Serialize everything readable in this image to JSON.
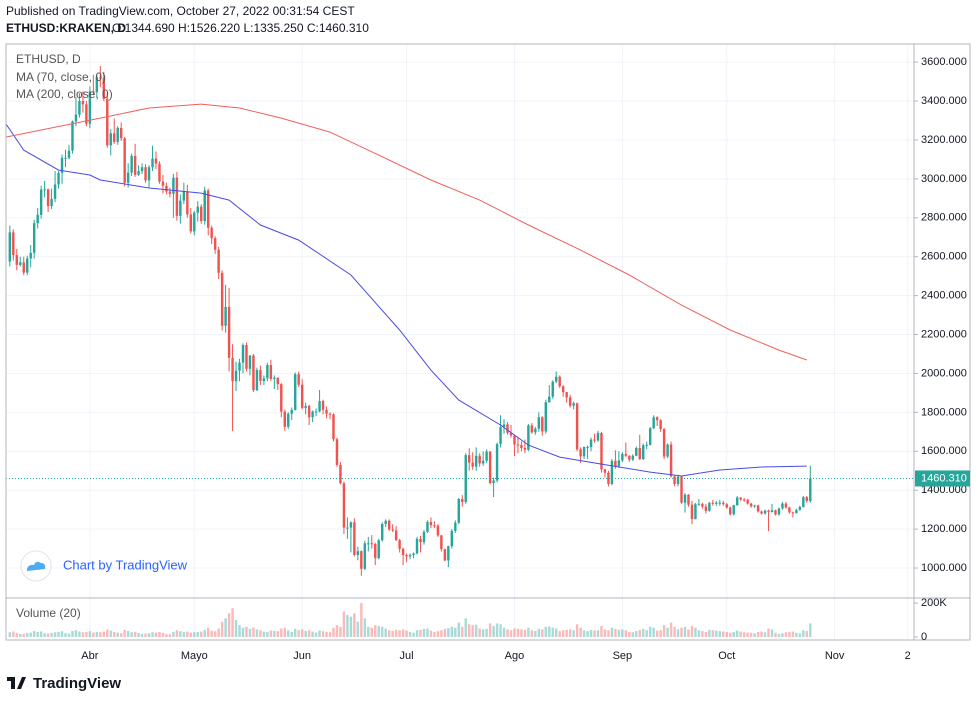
{
  "header": {
    "published": "Published on TradingView.com, October 27, 2022 00:31:54 CEST",
    "symbol": "ETHUSD:KRAKEN, D",
    "ohlc": "O:1344.690 H:1526.220 L:1335.250 C:1460.310"
  },
  "chart_data": {
    "type": "candlestick",
    "legend_title": "ETHUSD, D",
    "up_color": "#26a69a",
    "down_color": "#ef5350",
    "grid": true,
    "open": [
      2575,
      2725,
      2608,
      2558,
      2571,
      2518,
      2591,
      2620,
      2772,
      2815,
      2945,
      2946,
      2860,
      2897,
      2971,
      3031,
      3108,
      3108,
      3145,
      3295,
      3330,
      3400,
      3383,
      3283,
      3450,
      3445,
      3522,
      3520,
      3412,
      3172,
      3234,
      3190,
      3262,
      3209,
      2980,
      3032,
      3118,
      3021,
      3040,
      3060,
      2992,
      3060,
      3104,
      3078,
      2986,
      2964,
      2935,
      2923,
      3006,
      2810,
      2888,
      2935,
      2817,
      2730,
      2826,
      2857,
      2783,
      2940,
      2749,
      2695,
      2636,
      2517,
      2245,
      2342,
      2080,
      1960,
      2014,
      2056,
      2146,
      2024,
      2092,
      1914,
      2018,
      1961,
      1975,
      2043,
      1972,
      1978,
      1945,
      1804,
      1726,
      1793,
      1812,
      1996,
      1942,
      1823,
      1833,
      1775,
      1804,
      1805,
      1858,
      1813,
      1793,
      1790,
      1662,
      1530,
      1436,
      1208,
      1208,
      1235,
      1067,
      1087,
      996,
      1127,
      1127,
      1124,
      1051,
      1143,
      1226,
      1243,
      1199,
      1193,
      1143,
      1099,
      1067,
      1060,
      1067,
      1075,
      1150,
      1133,
      1186,
      1237,
      1220,
      1218,
      1168,
      1097,
      1039,
      1112,
      1191,
      1233,
      1355,
      1339,
      1580,
      1542,
      1521,
      1577,
      1537,
      1551,
      1599,
      1437,
      1450,
      1637,
      1725,
      1738,
      1695,
      1681,
      1635,
      1632,
      1617,
      1608,
      1733,
      1697,
      1716,
      1775,
      1702,
      1852,
      1881,
      1958,
      1983,
      1934,
      1904,
      1877,
      1834,
      1847,
      1610,
      1574,
      1622,
      1622,
      1660,
      1655,
      1694,
      1507,
      1490,
      1432,
      1551,
      1524,
      1553,
      1586,
      1577,
      1557,
      1577,
      1617,
      1560,
      1631,
      1633,
      1718,
      1775,
      1760,
      1714,
      1573,
      1635,
      1471,
      1432,
      1470,
      1336,
      1377,
      1325,
      1252,
      1328,
      1330,
      1316,
      1294,
      1335,
      1330,
      1336,
      1336,
      1328,
      1311,
      1276,
      1323,
      1362,
      1352,
      1351,
      1331,
      1317,
      1322,
      1291,
      1280,
      1295,
      1288,
      1297,
      1275,
      1306,
      1331,
      1311,
      1286,
      1282,
      1299,
      1314,
      1364,
      1344.69
    ],
    "high": [
      2760,
      2740,
      2640,
      2600,
      2600,
      2605,
      2660,
      2790,
      2850,
      2965,
      2990,
      2950,
      2950,
      3040,
      3040,
      3125,
      3150,
      3175,
      3300,
      3420,
      3440,
      3450,
      3400,
      3475,
      3535,
      3535,
      3580,
      3550,
      3445,
      3255,
      3310,
      3270,
      3290,
      3215,
      3080,
      3130,
      3180,
      3070,
      3080,
      3075,
      3070,
      3170,
      3140,
      3090,
      3020,
      2980,
      2955,
      3025,
      3035,
      2920,
      2980,
      2970,
      2850,
      2835,
      2885,
      2870,
      2960,
      2950,
      2760,
      2705,
      2650,
      2530,
      2455,
      2440,
      2150,
      2060,
      2075,
      2155,
      2160,
      2095,
      2100,
      2030,
      2040,
      1990,
      2055,
      2070,
      1990,
      1980,
      1950,
      1815,
      1800,
      1825,
      2005,
      2010,
      1970,
      1850,
      1840,
      1810,
      1820,
      1915,
      1865,
      1830,
      1800,
      1795,
      1670,
      1545,
      1445,
      1260,
      1240,
      1255,
      1110,
      1090,
      1140,
      1160,
      1170,
      1130,
      1150,
      1235,
      1250,
      1250,
      1225,
      1215,
      1150,
      1105,
      1075,
      1075,
      1080,
      1160,
      1165,
      1195,
      1245,
      1260,
      1240,
      1225,
      1170,
      1100,
      1115,
      1200,
      1245,
      1360,
      1375,
      1590,
      1615,
      1595,
      1620,
      1590,
      1600,
      1610,
      1600,
      1465,
      1645,
      1785,
      1765,
      1750,
      1735,
      1685,
      1675,
      1650,
      1660,
      1740,
      1745,
      1725,
      1800,
      1780,
      1865,
      1940,
      1965,
      2010,
      1990,
      1940,
      1905,
      1890,
      1855,
      1850,
      1620,
      1625,
      1630,
      1670,
      1690,
      1705,
      1700,
      1510,
      1500,
      1560,
      1605,
      1600,
      1595,
      1645,
      1580,
      1585,
      1625,
      1685,
      1640,
      1650,
      1725,
      1785,
      1780,
      1765,
      1720,
      1640,
      1650,
      1475,
      1480,
      1475,
      1385,
      1380,
      1345,
      1335,
      1355,
      1335,
      1330,
      1340,
      1350,
      1345,
      1350,
      1345,
      1335,
      1315,
      1325,
      1370,
      1365,
      1360,
      1355,
      1335,
      1325,
      1325,
      1295,
      1300,
      1300,
      1330,
      1300,
      1310,
      1340,
      1340,
      1315,
      1290,
      1305,
      1320,
      1370,
      1370,
      1526.22
    ],
    "low": [
      2550,
      2580,
      2530,
      2550,
      2505,
      2505,
      2545,
      2590,
      2745,
      2795,
      2905,
      2830,
      2845,
      2880,
      2950,
      2975,
      3060,
      3100,
      3130,
      3270,
      3315,
      3340,
      3270,
      3260,
      3430,
      3420,
      3470,
      3400,
      3160,
      3120,
      3180,
      3175,
      3195,
      2960,
      2955,
      3015,
      3010,
      3015,
      3025,
      2980,
      2955,
      3040,
      3050,
      2975,
      2925,
      2920,
      2905,
      2800,
      2785,
      2770,
      2870,
      2800,
      2720,
      2710,
      2780,
      2770,
      2765,
      2710,
      2665,
      2615,
      2485,
      2220,
      2210,
      2010,
      1704,
      1910,
      1960,
      2000,
      2010,
      1990,
      1905,
      1910,
      1940,
      1940,
      1960,
      1960,
      1920,
      1915,
      1775,
      1705,
      1715,
      1760,
      1810,
      1930,
      1815,
      1790,
      1735,
      1750,
      1780,
      1800,
      1790,
      1770,
      1765,
      1650,
      1520,
      1430,
      1175,
      1150,
      1080,
      1060,
      1040,
      960,
      990,
      1085,
      1100,
      1015,
      1045,
      1135,
      1210,
      1190,
      1185,
      1140,
      1080,
      1015,
      1030,
      1045,
      1050,
      1070,
      1080,
      1120,
      1180,
      1205,
      1205,
      1160,
      1085,
      1035,
      1005,
      1100,
      1180,
      1225,
      1315,
      1330,
      1500,
      1505,
      1500,
      1520,
      1525,
      1540,
      1430,
      1365,
      1440,
      1620,
      1690,
      1685,
      1670,
      1575,
      1590,
      1600,
      1590,
      1600,
      1690,
      1685,
      1700,
      1680,
      1690,
      1850,
      1870,
      1950,
      1925,
      1880,
      1850,
      1825,
      1815,
      1600,
      1540,
      1560,
      1560,
      1600,
      1645,
      1650,
      1490,
      1465,
      1420,
      1425,
      1510,
      1515,
      1545,
      1570,
      1545,
      1550,
      1575,
      1555,
      1555,
      1610,
      1630,
      1715,
      1730,
      1700,
      1560,
      1565,
      1465,
      1420,
      1420,
      1330,
      1285,
      1315,
      1225,
      1250,
      1320,
      1305,
      1280,
      1290,
      1320,
      1320,
      1320,
      1320,
      1305,
      1270,
      1270,
      1320,
      1345,
      1340,
      1325,
      1310,
      1310,
      1285,
      1275,
      1275,
      1190,
      1285,
      1270,
      1270,
      1300,
      1305,
      1280,
      1260,
      1280,
      1295,
      1310,
      1335,
      1335.25
    ],
    "close": [
      2725,
      2608,
      2558,
      2571,
      2518,
      2591,
      2620,
      2772,
      2815,
      2945,
      2946,
      2860,
      2897,
      2971,
      3031,
      3108,
      3108,
      3145,
      3295,
      3330,
      3400,
      3383,
      3283,
      3450,
      3445,
      3522,
      3520,
      3412,
      3172,
      3234,
      3190,
      3262,
      3209,
      2980,
      3032,
      3118,
      3021,
      3040,
      3060,
      2992,
      3060,
      3104,
      3078,
      2986,
      2964,
      2935,
      2923,
      3006,
      2810,
      2888,
      2935,
      2817,
      2730,
      2826,
      2857,
      2783,
      2940,
      2749,
      2695,
      2636,
      2517,
      2245,
      2342,
      2080,
      1960,
      2014,
      2056,
      2146,
      2024,
      2092,
      1914,
      2018,
      1961,
      1975,
      2043,
      1972,
      1978,
      1945,
      1804,
      1726,
      1793,
      1812,
      1996,
      1942,
      1823,
      1833,
      1775,
      1804,
      1805,
      1858,
      1813,
      1793,
      1790,
      1662,
      1530,
      1436,
      1208,
      1208,
      1235,
      1067,
      1087,
      996,
      1127,
      1127,
      1124,
      1051,
      1143,
      1226,
      1243,
      1199,
      1193,
      1143,
      1099,
      1067,
      1060,
      1067,
      1075,
      1150,
      1133,
      1186,
      1237,
      1220,
      1218,
      1168,
      1097,
      1039,
      1112,
      1191,
      1233,
      1355,
      1339,
      1580,
      1542,
      1521,
      1577,
      1537,
      1551,
      1599,
      1437,
      1450,
      1637,
      1725,
      1738,
      1695,
      1681,
      1635,
      1632,
      1617,
      1608,
      1733,
      1697,
      1716,
      1775,
      1702,
      1852,
      1881,
      1958,
      1983,
      1934,
      1904,
      1877,
      1834,
      1847,
      1610,
      1574,
      1622,
      1622,
      1660,
      1655,
      1694,
      1507,
      1490,
      1432,
      1551,
      1524,
      1553,
      1586,
      1577,
      1557,
      1577,
      1617,
      1560,
      1631,
      1633,
      1718,
      1775,
      1760,
      1714,
      1573,
      1635,
      1471,
      1432,
      1470,
      1336,
      1377,
      1325,
      1252,
      1328,
      1330,
      1316,
      1294,
      1335,
      1330,
      1336,
      1336,
      1328,
      1311,
      1276,
      1323,
      1362,
      1352,
      1351,
      1331,
      1317,
      1322,
      1291,
      1280,
      1295,
      1288,
      1297,
      1275,
      1306,
      1331,
      1311,
      1286,
      1282,
      1299,
      1314,
      1364,
      1344.69,
      1460.31
    ],
    "last_label": "1460.310",
    "xlim": [
      -1.1,
      259.8
    ],
    "xticks": [
      {
        "value": 23,
        "label": "Abr"
      },
      {
        "value": 53,
        "label": "Mayo"
      },
      {
        "value": 84,
        "label": "Jun"
      },
      {
        "value": 114,
        "label": "Jul"
      },
      {
        "value": 145,
        "label": "Ago"
      },
      {
        "value": 176,
        "label": "Sep"
      },
      {
        "value": 206,
        "label": "Oct"
      },
      {
        "value": 237,
        "label": "Nov"
      },
      {
        "value": 258,
        "label": "2"
      }
    ],
    "ylim": [
      846,
      3693
    ],
    "yticks": [
      {
        "value": 1000,
        "label": "1000.000"
      },
      {
        "value": 1200,
        "label": "1200.000"
      },
      {
        "value": 1400,
        "label": "1400.000"
      },
      {
        "value": 1600,
        "label": "1600.000"
      },
      {
        "value": 1800,
        "label": "1800.000"
      },
      {
        "value": 2000,
        "label": "2000.000"
      },
      {
        "value": 2200,
        "label": "2200.000"
      },
      {
        "value": 2400,
        "label": "2400.000"
      },
      {
        "value": 2600,
        "label": "2600.000"
      },
      {
        "value": 2800,
        "label": "2800.000"
      },
      {
        "value": 3000,
        "label": "3000.000"
      },
      {
        "value": 3200,
        "label": "3200.000"
      },
      {
        "value": 3400,
        "label": "3400.000"
      },
      {
        "value": 3600,
        "label": "3600.000"
      }
    ],
    "overlays": [
      {
        "name": "MA (70, close, 0)",
        "color": "#4a4ae8",
        "x": [
          -1,
          4,
          14,
          23,
          26,
          40,
          55,
          63,
          72,
          83,
          98,
          112,
          121,
          129,
          141,
          149,
          158,
          170,
          184,
          193,
          204,
          216,
          229
        ],
        "values": [
          3280,
          3148,
          3045,
          3020,
          2994,
          2953,
          2927,
          2891,
          2763,
          2685,
          2506,
          2223,
          2017,
          1863,
          1735,
          1632,
          1570,
          1534,
          1493,
          1473,
          1504,
          1519,
          1524
        ]
      },
      {
        "name": "MA (200, close, 0)",
        "color": "#f0605c",
        "x": [
          -1,
          26,
          40,
          55,
          66,
          78,
          92,
          106,
          121,
          135,
          149,
          164,
          178,
          193,
          207,
          221,
          229
        ],
        "values": [
          3215,
          3312,
          3364,
          3384,
          3364,
          3312,
          3240,
          3122,
          2994,
          2891,
          2763,
          2634,
          2506,
          2351,
          2223,
          2120,
          2069
        ]
      }
    ],
    "volume": {
      "title": "Volume (20)",
      "ylim": [
        0,
        230000
      ],
      "yticks": [
        0,
        {
          "value": 200000,
          "label": "200K"
        }
      ],
      "values": [
        28000,
        32000,
        25000,
        18000,
        20000,
        24000,
        26000,
        35000,
        30000,
        33000,
        22000,
        20000,
        24000,
        28000,
        30000,
        34000,
        22000,
        20000,
        36000,
        40000,
        32000,
        28000,
        30000,
        34000,
        26000,
        30000,
        28000,
        32000,
        45000,
        38000,
        30000,
        26000,
        22000,
        42000,
        36000,
        28000,
        30000,
        24000,
        18000,
        20000,
        22000,
        28000,
        26000,
        30000,
        24000,
        18000,
        17000,
        30000,
        40000,
        34000,
        30000,
        32000,
        26000,
        28000,
        30000,
        32000,
        42000,
        55000,
        38000,
        34000,
        50000,
        90000,
        110000,
        140000,
        170000,
        100000,
        70000,
        55000,
        60000,
        48000,
        55000,
        45000,
        40000,
        32000,
        30000,
        38000,
        36000,
        34000,
        50000,
        55000,
        40000,
        30000,
        48000,
        40000,
        45000,
        36000,
        40000,
        32000,
        26000,
        38000,
        34000,
        30000,
        28000,
        55000,
        70000,
        60000,
        150000,
        130000,
        120000,
        140000,
        90000,
        200000,
        110000,
        60000,
        55000,
        70000,
        65000,
        60000,
        50000,
        40000,
        35000,
        42000,
        40000,
        45000,
        38000,
        30000,
        25000,
        40000,
        42000,
        48000,
        50000,
        38000,
        30000,
        34000,
        40000,
        48000,
        52000,
        60000,
        55000,
        85000,
        60000,
        110000,
        75000,
        70000,
        72000,
        50000,
        45000,
        48000,
        80000,
        65000,
        80000,
        75000,
        55000,
        45000,
        40000,
        50000,
        48000,
        45000,
        42000,
        55000,
        40000,
        35000,
        48000,
        45000,
        60000,
        62000,
        55000,
        50000,
        35000,
        40000,
        42000,
        45000,
        40000,
        75000,
        55000,
        40000,
        35000,
        42000,
        38000,
        40000,
        65000,
        45000,
        40000,
        55000,
        48000,
        42000,
        45000,
        40000,
        30000,
        28000,
        35000,
        42000,
        48000,
        40000,
        60000,
        55000,
        38000,
        40000,
        70000,
        55000,
        85000,
        60000,
        45000,
        55000,
        60000,
        45000,
        65000,
        55000,
        40000,
        35000,
        30000,
        42000,
        40000,
        38000,
        35000,
        32000,
        30000,
        25000,
        30000,
        38000,
        32000,
        28000,
        26000,
        25000,
        22000,
        30000,
        32000,
        28000,
        50000,
        45000,
        25000,
        18000,
        22000,
        28000,
        30000,
        32000,
        25000,
        22000,
        40000,
        35000,
        80000
      ]
    }
  },
  "watermark": "Chart by TradingView",
  "footer": "TradingView"
}
